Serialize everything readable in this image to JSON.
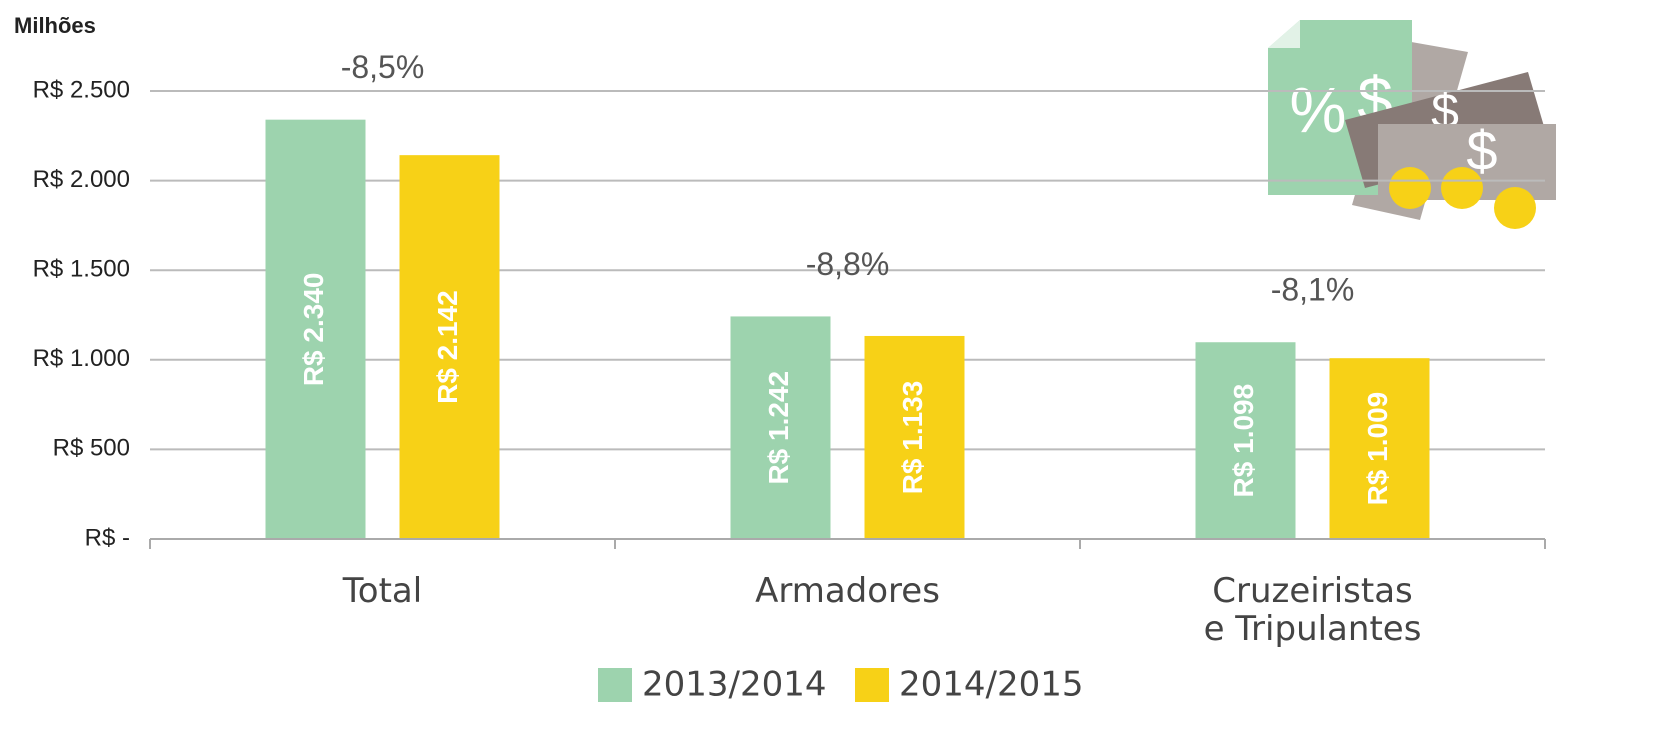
{
  "chart_data": {
    "type": "bar",
    "y_label": "Milhões",
    "categories": [
      "Total",
      "Armadores",
      "Cruzeiristas\ne Tripulantes"
    ],
    "changes": [
      "-8,5%",
      "-8,8%",
      "-8,1%"
    ],
    "series": [
      {
        "name": "2013/2014",
        "color": "#9dd3ae",
        "values": [
          2340,
          1242,
          1098
        ],
        "value_labels": [
          "R$ 2.340",
          "R$ 1.242",
          "R$ 1.098"
        ]
      },
      {
        "name": "2014/2015",
        "color": "#f7d117",
        "values": [
          2142,
          1133,
          1009
        ],
        "value_labels": [
          "R$ 2.142",
          "R$ 1.133",
          "R$ 1.009"
        ]
      }
    ],
    "ylim": [
      0,
      2500
    ],
    "yticks": [
      {
        "value": 0,
        "label": "R$ -"
      },
      {
        "value": 500,
        "label": "R$ 500"
      },
      {
        "value": 1000,
        "label": "R$ 1.000"
      },
      {
        "value": 1500,
        "label": "R$ 1.500"
      },
      {
        "value": 2000,
        "label": "R$ 2.000"
      },
      {
        "value": 2500,
        "label": "R$ 2.500"
      }
    ],
    "grid": true
  }
}
